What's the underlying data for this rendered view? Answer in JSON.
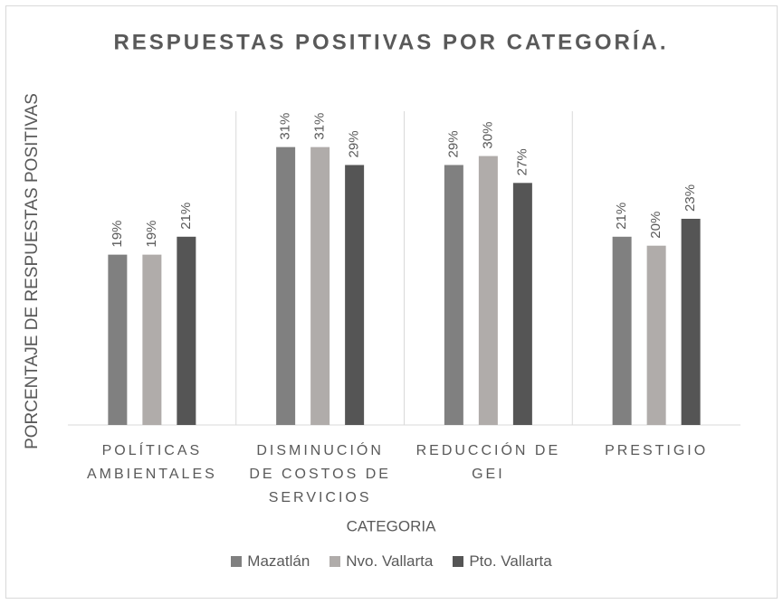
{
  "chart_data": {
    "type": "bar",
    "title": "RESPUESTAS POSITIVAS POR CATEGORÍA.",
    "x_label": "CATEGORIA",
    "y_label": "PORCENTAJE DE RESPUESTAS POSITIVAS",
    "categories": [
      "POLÍTICAS AMBIENTALES",
      "DISMINUCIÓN DE COSTOS DE SERVICIOS",
      "REDUCCIÓN DE GEI",
      "PRESTIGIO"
    ],
    "series": [
      {
        "name": "Mazatlán",
        "color": "#808080",
        "values": [
          19,
          31,
          29,
          21
        ],
        "value_labels": [
          "19%",
          "31%",
          "29%",
          "21%"
        ]
      },
      {
        "name": "Nvo. Vallarta",
        "color": "#b0acaa",
        "values": [
          19,
          31,
          30,
          20
        ],
        "value_labels": [
          "19%",
          "31%",
          "30%",
          "20%"
        ]
      },
      {
        "name": "Pto. Vallarta",
        "color": "#555555",
        "values": [
          21,
          29,
          27,
          23
        ],
        "value_labels": [
          "21%",
          "29%",
          "27%",
          "23%"
        ]
      }
    ],
    "ylim": [
      0,
      35
    ],
    "legend": "bottom"
  }
}
